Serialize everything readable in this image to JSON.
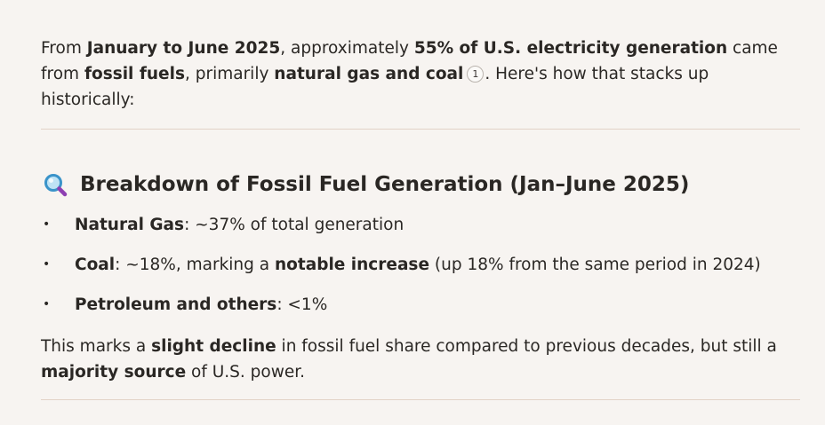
{
  "intro": {
    "t1": "From ",
    "b1": "January to June 2025",
    "t2": ", approximately ",
    "b2": "55% of U.S. electricity generation",
    "t3": " came from ",
    "b3": "fossil fuels",
    "t4": ", primarily ",
    "b4": "natural gas and coal",
    "citation": "1",
    "t5": ". Here's how that stacks up historically:"
  },
  "section": {
    "icon": "magnifying-glass-icon",
    "heading": "Breakdown of Fossil Fuel Generation (Jan–June 2025)"
  },
  "bullets": [
    {
      "marker": "•",
      "label": "Natural Gas",
      "text": ": ~37% of total generation"
    },
    {
      "marker": "•",
      "label": "Coal",
      "text_a": ": ~18%, marking a ",
      "bold_b": "notable increase",
      "text_c": " (up 18% from the same period in 2024)"
    },
    {
      "marker": "•",
      "label": "Petroleum and others",
      "text": ": <1%"
    }
  ],
  "closing": {
    "t1": "This marks a ",
    "b1": "slight decline",
    "t2": " in fossil fuel share compared to previous decades, but still a ",
    "b2": "majority source",
    "t3": " of U.S. power."
  },
  "colors": {
    "background": "#f7f4f1",
    "divider": "#e2d3c7",
    "text": "#2a2724"
  }
}
